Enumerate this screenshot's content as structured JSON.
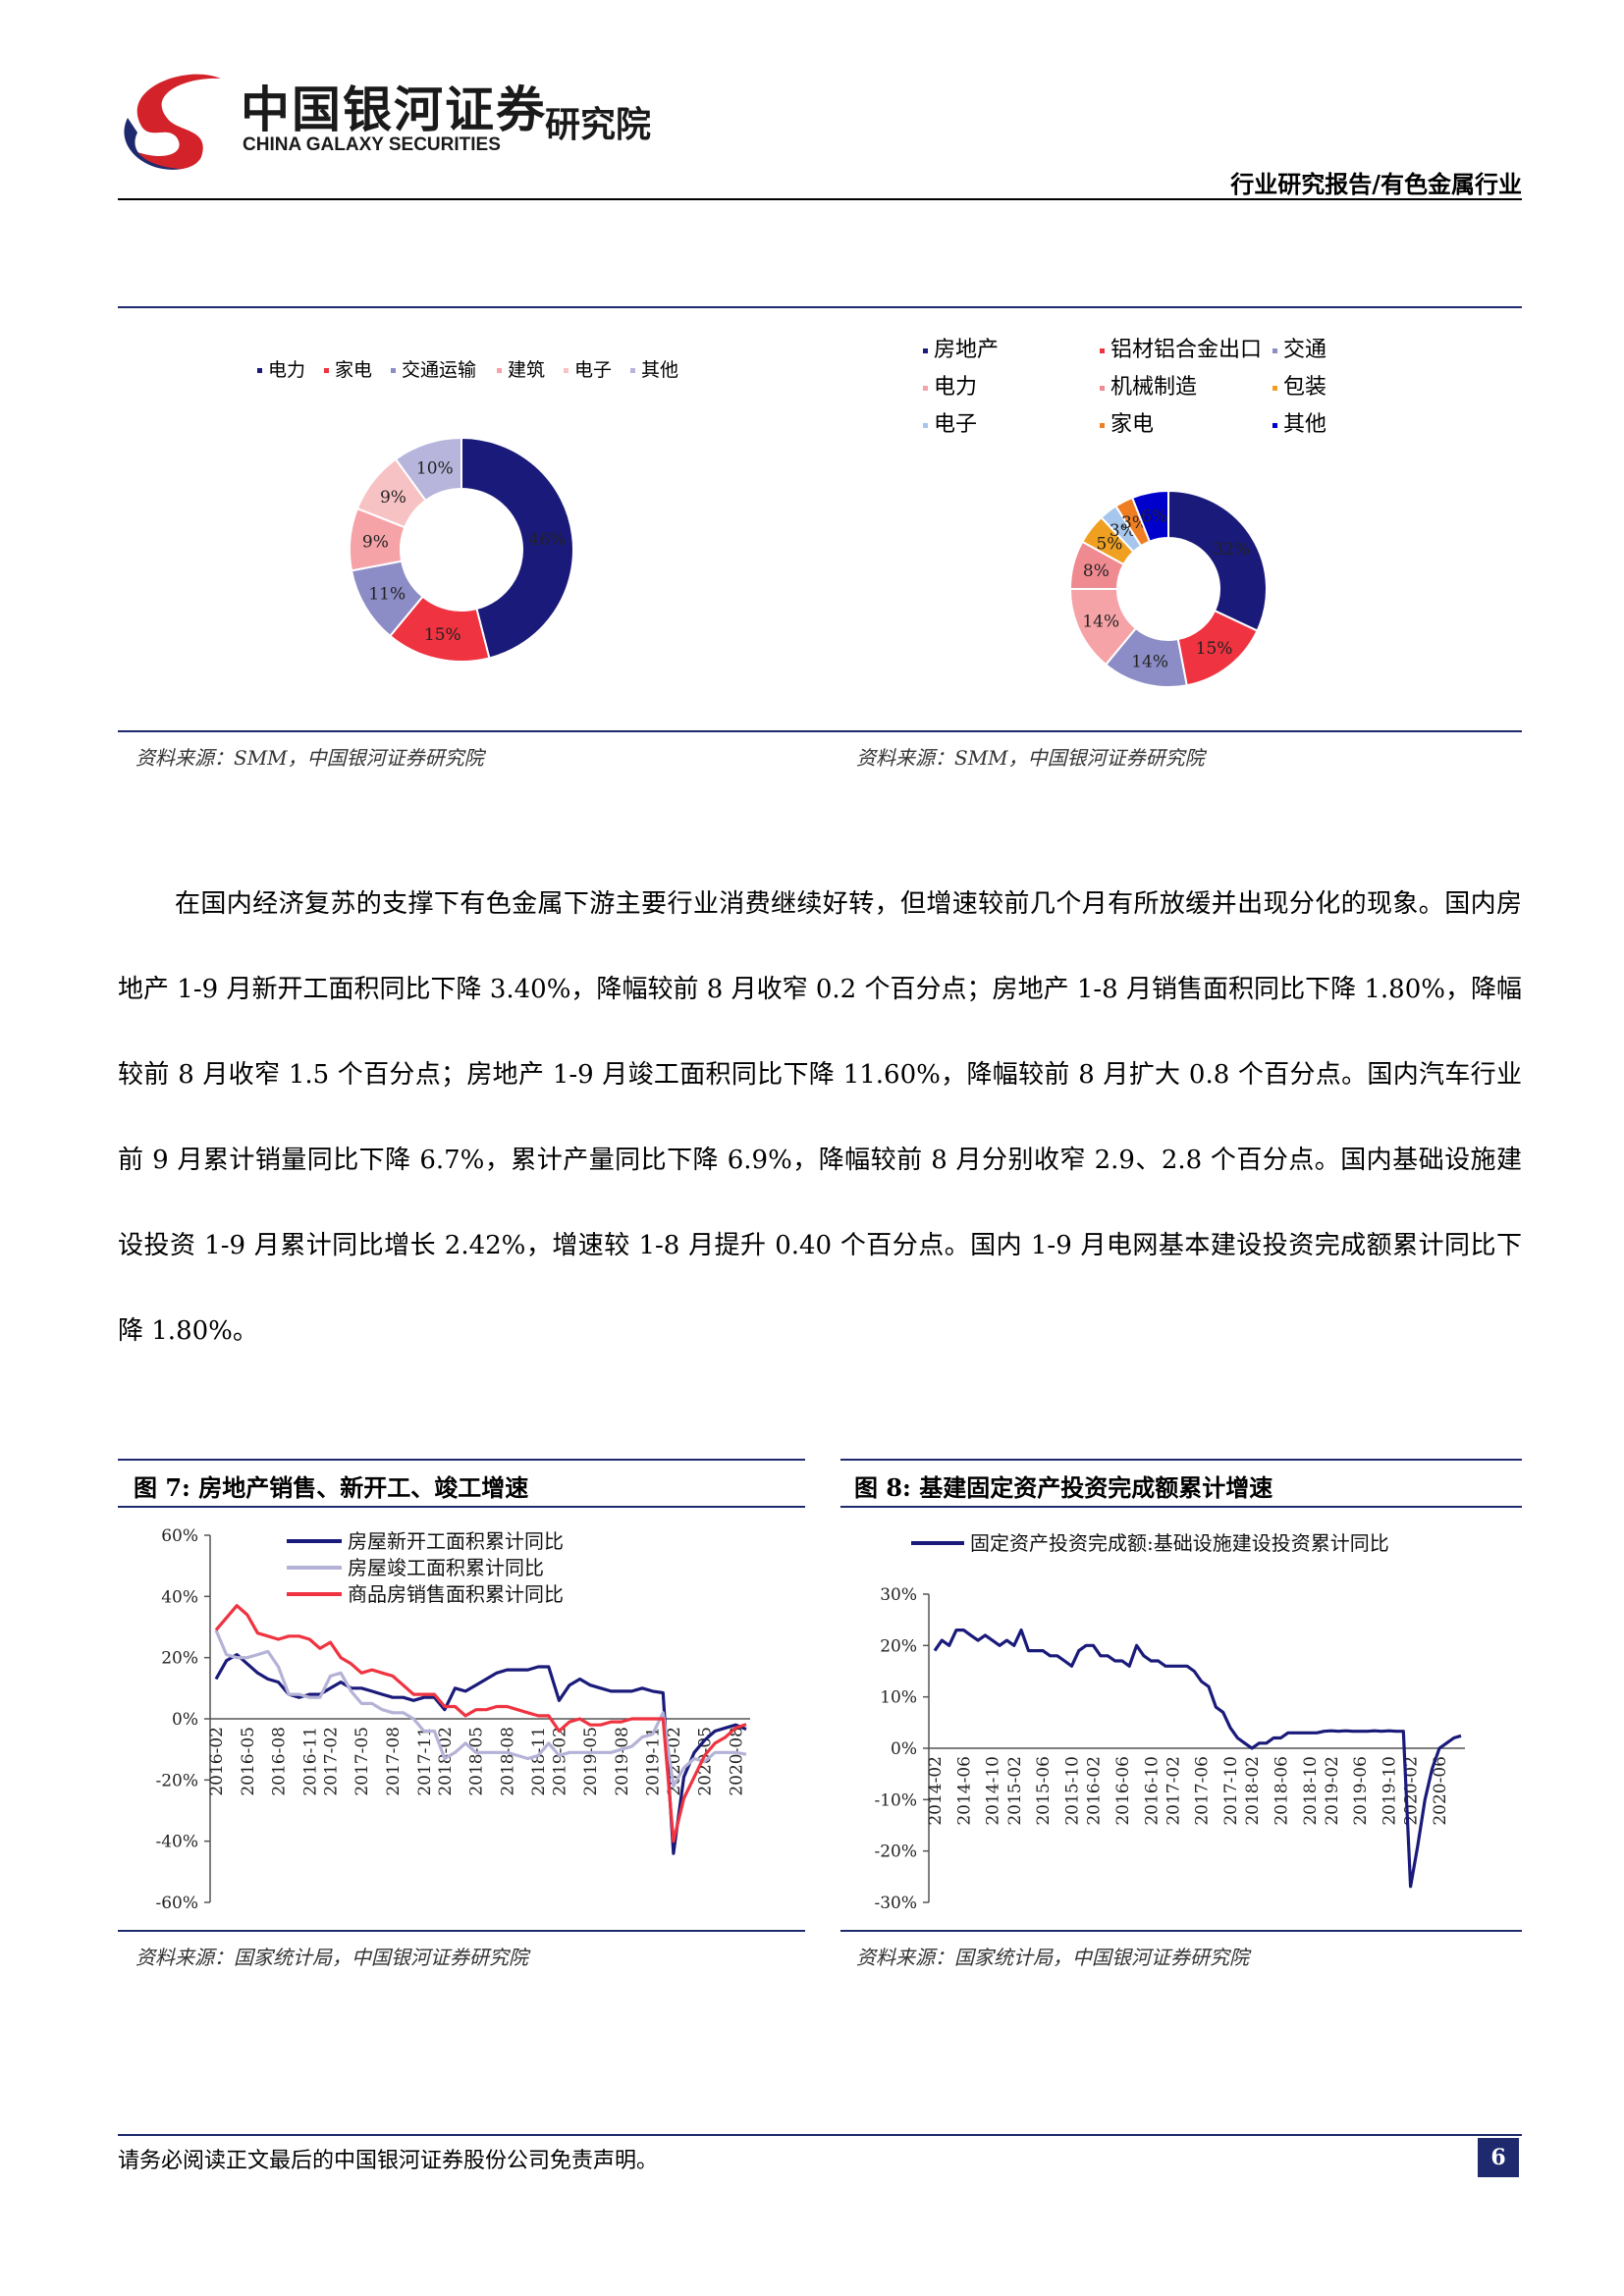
{
  "header": {
    "logo_cn": "中国银河证券",
    "logo_en": "CHINA GALAXY SECURITIES",
    "logo_inst": "研究院",
    "report_type": "行业研究报告/有色金属行业"
  },
  "pie_left": {
    "legend": [
      "电力",
      "家电",
      "交通运输",
      "建筑",
      "电子",
      "其他"
    ],
    "colors": [
      "#1a1a7a",
      "#ef3340",
      "#8c8cc6",
      "#f6a3a8",
      "#f7c2c4",
      "#b7b5db"
    ],
    "values": [
      46,
      15,
      11,
      9,
      9,
      10
    ],
    "labels": [
      "46%",
      "15%",
      "11%",
      "9%",
      "9%",
      "10%"
    ],
    "source": "资料来源：SMM，中国银河证券研究院"
  },
  "pie_right": {
    "legend": [
      "房地产",
      "铝材铝合金出口",
      "交通",
      "电力",
      "机械制造",
      "包装",
      "电子",
      "家电",
      "其他"
    ],
    "colors": [
      "#1a1a7a",
      "#ef3340",
      "#8c8cc6",
      "#f6a3a8",
      "#f08a91",
      "#f0a020",
      "#a6c6ee",
      "#ef7d22",
      "#0000cc"
    ],
    "values": [
      32,
      15,
      14,
      14,
      8,
      5,
      3,
      3,
      6
    ],
    "labels": [
      "32%",
      "15%",
      "14%",
      "14%",
      "8%",
      "5%",
      "3%",
      "3%",
      "6%"
    ],
    "source": "资料来源：SMM，中国银河证券研究院"
  },
  "body_text": "在国内经济复苏的支撑下有色金属下游主要行业消费继续好转，但增速较前几个月有所放缓并出现分化的现象。国内房地产 1-9 月新开工面积同比下降 3.40%，降幅较前 8 月收窄 0.2 个百分点；房地产 1-8 月销售面积同比下降 1.80%，降幅较前 8 月收窄 1.5 个百分点；房地产 1-9 月竣工面积同比下降 11.60%，降幅较前 8 月扩大 0.8 个百分点。国内汽车行业前 9 月累计销量同比下降 6.7%，累计产量同比下降 6.9%，降幅较前 8 月分别收窄 2.9、2.8 个百分点。国内基础设施建设投资 1-9 月累计同比增长 2.42%，增速较 1-8 月提升 0.40 个百分点。国内 1-9 月电网基本建设投资完成额累计同比下降 1.80%。",
  "fig7": {
    "title": "图 7:  房地产销售、新开工、竣工增速",
    "source": "资料来源：国家统计局，中国银河证券研究院"
  },
  "fig8": {
    "title": "图 8:  基建固定资产投资完成额累计增速",
    "source": "资料来源：国家统计局，中国银河证券研究院"
  },
  "chart_data": [
    {
      "type": "line",
      "x": [
        "2016-02",
        "2016-03",
        "2016-04",
        "2016-05",
        "2016-06",
        "2016-07",
        "2016-08",
        "2016-09",
        "2016-10",
        "2016-11",
        "2016-12",
        "2017-02",
        "2017-03",
        "2017-04",
        "2017-05",
        "2017-06",
        "2017-07",
        "2017-08",
        "2017-09",
        "2017-10",
        "2017-11",
        "2017-12",
        "2018-02",
        "2018-03",
        "2018-04",
        "2018-05",
        "2018-06",
        "2018-07",
        "2018-08",
        "2018-09",
        "2018-10",
        "2018-11",
        "2018-12",
        "2019-02",
        "2019-03",
        "2019-04",
        "2019-05",
        "2019-06",
        "2019-07",
        "2019-08",
        "2019-09",
        "2019-10",
        "2019-11",
        "2019-12",
        "2020-02",
        "2020-03",
        "2020-04",
        "2020-05",
        "2020-06",
        "2020-07",
        "2020-08",
        "2020-09"
      ],
      "x_ticks": [
        "2016-02",
        "2016-05",
        "2016-08",
        "2016-11",
        "2017-02",
        "2017-05",
        "2017-08",
        "2017-11",
        "2018-02",
        "2018-05",
        "2018-08",
        "2018-11",
        "2019-02",
        "2019-05",
        "2019-08",
        "2019-11",
        "2020-02",
        "2020-05",
        "2020-08"
      ],
      "series": [
        {
          "name": "房屋新开工面积累计同比",
          "color": "#1a1a7a",
          "values": [
            13,
            19,
            21,
            18,
            15,
            13,
            12,
            8,
            7,
            8,
            8,
            10,
            12,
            10,
            10,
            9,
            8,
            7,
            7,
            6,
            7,
            7,
            3,
            10,
            9,
            11,
            13,
            15,
            16,
            16,
            16,
            17,
            17,
            6,
            11,
            13,
            11,
            10,
            9,
            9,
            9,
            10,
            9,
            8.5,
            -44,
            -19,
            -11,
            -7,
            -4,
            -3,
            -2,
            -3.4
          ]
        },
        {
          "name": "房屋竣工面积累计同比",
          "color": "#b4b2d6",
          "values": [
            29,
            21,
            20,
            20,
            21,
            22,
            17,
            8,
            8,
            7,
            7,
            14,
            15,
            9,
            5,
            5,
            3,
            2,
            2,
            0,
            -4,
            -4,
            -13,
            -11,
            -8,
            -11,
            -11,
            -11,
            -11,
            -12,
            -13,
            -12,
            -8,
            -12,
            -11,
            -11,
            -11,
            -11,
            -11,
            -10,
            -9,
            -6,
            -5,
            2,
            -22,
            -16,
            -13,
            -14,
            -11,
            -11,
            -11,
            -11.6
          ]
        },
        {
          "name": "商品房销售面积累计同比",
          "color": "#ef3340",
          "values": [
            29,
            33,
            37,
            34,
            28,
            27,
            26,
            27,
            27,
            26,
            23,
            25,
            20,
            18,
            15,
            16,
            15,
            14,
            11,
            8,
            8,
            8,
            4,
            4,
            1,
            3,
            3,
            4,
            4,
            3,
            2,
            1,
            1,
            -4,
            -1,
            0,
            -2,
            -2,
            -1,
            -1,
            0,
            0,
            0,
            0,
            -40,
            -26,
            -19,
            -12,
            -8,
            -6,
            -3,
            -1.8
          ]
        }
      ],
      "ylim": [
        -60,
        60
      ],
      "y_ticks": [
        "60%",
        "40%",
        "20%",
        "0%",
        "-20%",
        "-40%",
        "-60%"
      ]
    },
    {
      "type": "line",
      "x": [
        "2014-02",
        "2014-03",
        "2014-04",
        "2014-05",
        "2014-06",
        "2014-07",
        "2014-08",
        "2014-09",
        "2014-10",
        "2014-11",
        "2014-12",
        "2015-02",
        "2015-03",
        "2015-04",
        "2015-05",
        "2015-06",
        "2015-07",
        "2015-08",
        "2015-09",
        "2015-10",
        "2015-11",
        "2015-12",
        "2016-02",
        "2016-03",
        "2016-04",
        "2016-05",
        "2016-06",
        "2016-07",
        "2016-08",
        "2016-09",
        "2016-10",
        "2016-11",
        "2016-12",
        "2017-02",
        "2017-03",
        "2017-04",
        "2017-05",
        "2017-06",
        "2017-07",
        "2017-08",
        "2017-09",
        "2017-10",
        "2017-11",
        "2017-12",
        "2018-02",
        "2018-03",
        "2018-04",
        "2018-05",
        "2018-06",
        "2018-07",
        "2018-08",
        "2018-09",
        "2018-10",
        "2018-11",
        "2018-12",
        "2019-02",
        "2019-03",
        "2019-04",
        "2019-05",
        "2019-06",
        "2019-07",
        "2019-08",
        "2019-09",
        "2019-10",
        "2019-11",
        "2019-12",
        "2020-02",
        "2020-03",
        "2020-04",
        "2020-05",
        "2020-06",
        "2020-07",
        "2020-08",
        "2020-09"
      ],
      "x_ticks": [
        "2014-02",
        "2014-06",
        "2014-10",
        "2015-02",
        "2015-06",
        "2015-10",
        "2016-02",
        "2016-06",
        "2016-10",
        "2017-02",
        "2017-06",
        "2017-10",
        "2018-02",
        "2018-06",
        "2018-10",
        "2019-02",
        "2019-06",
        "2019-10",
        "2020-02",
        "2020-06"
      ],
      "series": [
        {
          "name": "固定资产投资完成额:基础设施建设投资累计同比",
          "color": "#1a1a7a",
          "values": [
            19,
            21,
            20,
            23,
            23,
            22,
            21,
            22,
            21,
            20,
            21,
            20,
            23,
            19,
            19,
            19,
            18,
            18,
            17,
            16,
            19,
            20,
            20,
            18,
            18,
            17,
            17,
            16,
            20,
            18,
            17,
            17,
            16,
            16,
            16,
            16,
            15,
            13,
            12,
            8,
            7,
            4,
            2,
            1,
            0,
            1,
            1,
            2,
            2,
            3,
            3,
            3,
            3,
            3,
            3.3,
            3.4,
            3.3,
            3.4,
            3.3,
            3.3,
            3.3,
            3.4,
            3.3,
            3.4,
            3.3,
            3.3,
            -26.9,
            -19,
            -10,
            -4,
            0,
            1,
            2,
            2.42
          ]
        }
      ],
      "ylim": [
        -30,
        30
      ],
      "y_ticks": [
        "30%",
        "20%",
        "10%",
        "0%",
        "-10%",
        "-20%",
        "-30%"
      ]
    }
  ],
  "footer": {
    "note": "请务必阅读正文最后的中国银河证券股份公司免责声明。",
    "page": "6"
  }
}
